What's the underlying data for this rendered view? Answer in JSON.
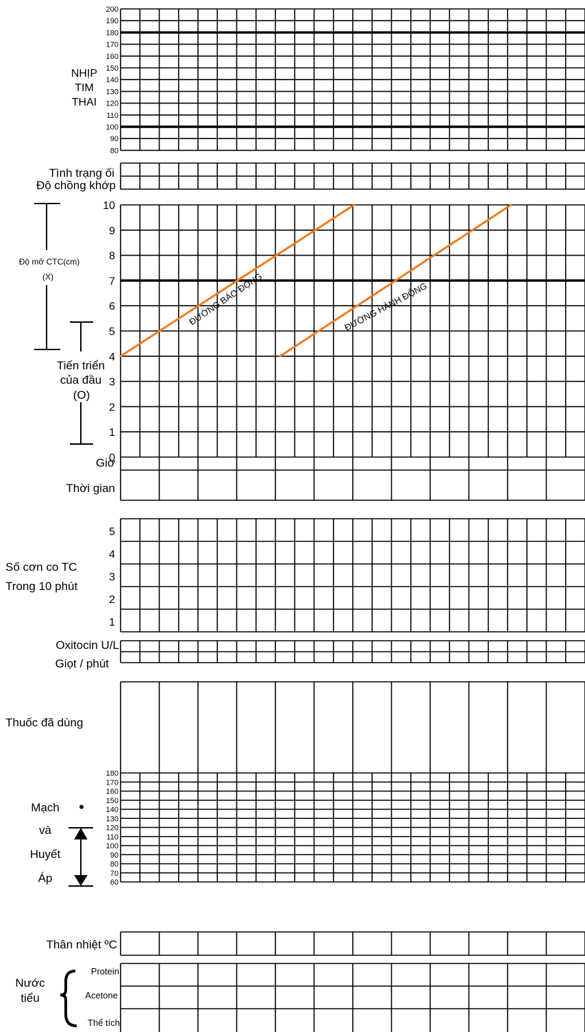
{
  "fetal_heart_rate": {
    "label_lines": [
      "NHỊP",
      "TIM",
      "THAI"
    ],
    "ticks": [
      200,
      190,
      180,
      170,
      160,
      150,
      140,
      130,
      120,
      110,
      100,
      90,
      80
    ],
    "reference_lines": [
      180,
      100
    ]
  },
  "amniotic": {
    "label_1": "Tình trạng ối",
    "label_2": "Độ chồng khớp"
  },
  "cervix": {
    "label": "Độ mở CTC(cm)",
    "symbol": "(X)",
    "ticks": [
      10,
      9,
      8,
      7,
      6,
      5,
      4,
      3,
      2,
      1,
      0
    ],
    "reference_line": 7,
    "alert_line_label": "ĐƯỜNG BÁO ĐỘNG",
    "action_line_label": "ĐƯỜNG HÀNH ĐỘNG",
    "head_label_lines": [
      "Tiến triển",
      "của đầu"
    ],
    "head_symbol": "(O)",
    "line_color": "#f07c1e"
  },
  "time": {
    "hour_label": "Giờ",
    "time_label": "Thời gian"
  },
  "contractions": {
    "label_1": "Số cơn co TC",
    "label_2": "Trong 10 phút",
    "ticks": [
      5,
      4,
      3,
      2,
      1
    ]
  },
  "oxytocin": {
    "label_1": "Oxitocin U/L",
    "label_2": "Giọt / phút"
  },
  "drugs": {
    "label": "Thuốc đã dùng"
  },
  "pulse_bp": {
    "label_lines": [
      "Mạch",
      "và",
      "Huyết",
      "Áp"
    ],
    "pulse_symbol": "•",
    "ticks": [
      180,
      170,
      160,
      150,
      140,
      130,
      120,
      110,
      100,
      90,
      80,
      70,
      60
    ]
  },
  "temperature": {
    "label": "Thân nhiệt ºC"
  },
  "urine": {
    "label_lines": [
      "Nước",
      "tiểu"
    ],
    "protein_label": "Protein",
    "acetone_label": "Acetone",
    "volume_label": "Thể tích"
  }
}
